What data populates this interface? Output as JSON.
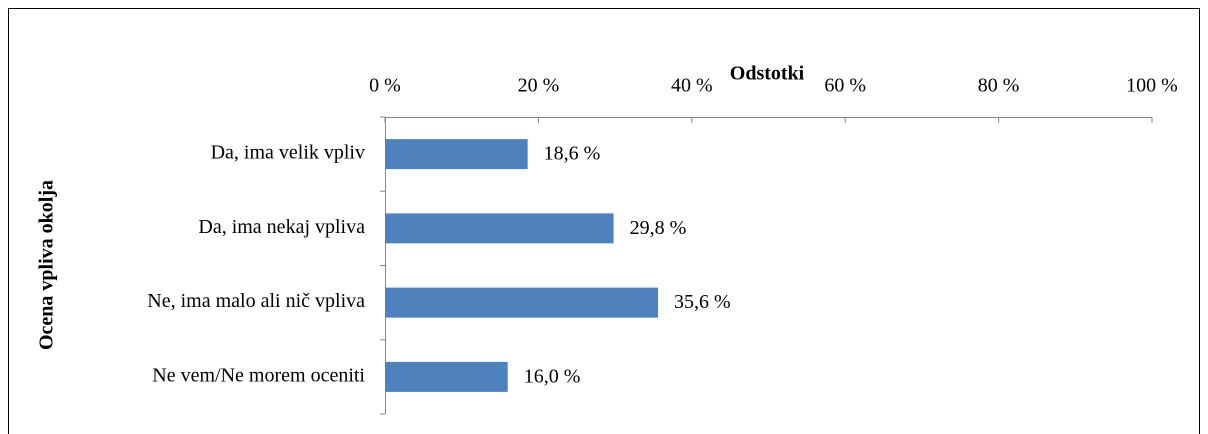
{
  "chart_data": {
    "type": "hbar",
    "x_label": "Odstotki",
    "y_label": "Ocena vpliva okolja",
    "categories": [
      "Da, ima velik vpliv",
      "Da, ima nekaj vpliva",
      "Ne, ima malo ali nič vpliva",
      "Ne vem/Ne morem oceniti"
    ],
    "values": [
      18.6,
      29.8,
      35.6,
      16.0
    ],
    "value_labels": [
      "18,6 %",
      "29,8 %",
      "35,6 %",
      "16,0 %"
    ],
    "color": "#4f81bd",
    "xlim": [
      0,
      100
    ],
    "xticks": [
      {
        "value": 0,
        "label": "0 %"
      },
      {
        "value": 20,
        "label": "20 %"
      },
      {
        "value": 40,
        "label": "40 %"
      },
      {
        "value": 60,
        "label": "60 %"
      },
      {
        "value": 80,
        "label": "80 %"
      },
      {
        "value": 100,
        "label": "100 %"
      }
    ]
  }
}
